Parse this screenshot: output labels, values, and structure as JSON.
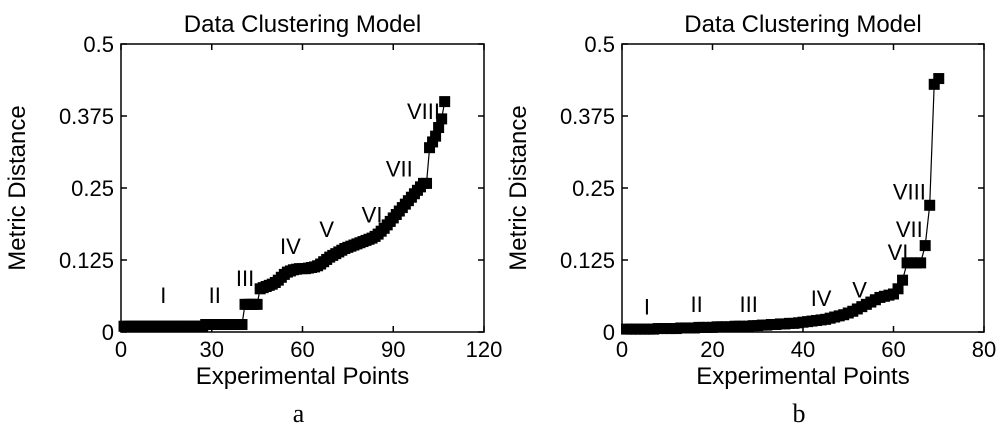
{
  "chart_data": [
    {
      "panel": "a",
      "type": "line",
      "marker": "square",
      "title": "Data Clustering Model",
      "xlabel": "Experimental Points",
      "ylabel": "Metric Distance",
      "xlim": [
        0,
        120
      ],
      "ylim": [
        0,
        0.5
      ],
      "xticks": [
        "0",
        "30",
        "60",
        "90",
        "120"
      ],
      "yticks": [
        "0",
        "0.125",
        "0.25",
        "0.375",
        "0.5"
      ],
      "grid": false,
      "annotations": [
        {
          "text": "I",
          "x": 14,
          "y": 0.05
        },
        {
          "text": "II",
          "x": 31,
          "y": 0.05
        },
        {
          "text": "III",
          "x": 41,
          "y": 0.08
        },
        {
          "text": "IV",
          "x": 56,
          "y": 0.135
        },
        {
          "text": "V",
          "x": 68,
          "y": 0.165
        },
        {
          "text": "VI",
          "x": 83,
          "y": 0.19
        },
        {
          "text": "VII",
          "x": 92,
          "y": 0.27
        },
        {
          "text": "VIII",
          "x": 100,
          "y": 0.37
        }
      ],
      "series": [
        {
          "x": [
            1,
            2,
            3,
            4,
            5,
            6,
            7,
            8,
            9,
            10,
            11,
            12,
            13,
            14,
            15,
            16,
            17,
            18,
            19,
            20,
            21,
            22,
            23,
            24,
            25,
            26,
            27,
            28,
            29,
            30,
            31,
            32,
            33,
            34,
            35,
            36,
            37,
            38,
            39,
            40,
            41,
            42,
            43,
            44,
            45,
            46,
            47,
            48,
            49,
            50,
            51,
            52,
            53,
            54,
            55,
            56,
            57,
            58,
            59,
            60,
            61,
            62,
            63,
            64,
            65,
            66,
            67,
            68,
            69,
            70,
            71,
            72,
            73,
            74,
            75,
            76,
            77,
            78,
            79,
            80,
            81,
            82,
            83,
            84,
            85,
            86,
            87,
            88,
            89,
            90,
            91,
            92,
            93,
            94,
            95,
            96,
            97,
            98,
            99,
            100,
            101,
            102,
            103,
            104,
            105,
            106,
            107
          ],
          "y": [
            0.01,
            0.01,
            0.01,
            0.01,
            0.01,
            0.01,
            0.01,
            0.01,
            0.01,
            0.01,
            0.01,
            0.01,
            0.01,
            0.01,
            0.01,
            0.01,
            0.01,
            0.01,
            0.01,
            0.01,
            0.01,
            0.01,
            0.01,
            0.01,
            0.01,
            0.01,
            0.01,
            0.013,
            0.013,
            0.013,
            0.013,
            0.013,
            0.013,
            0.013,
            0.013,
            0.013,
            0.013,
            0.013,
            0.013,
            0.013,
            0.048,
            0.048,
            0.048,
            0.048,
            0.048,
            0.075,
            0.077,
            0.079,
            0.081,
            0.083,
            0.086,
            0.09,
            0.095,
            0.1,
            0.104,
            0.106,
            0.108,
            0.109,
            0.11,
            0.11,
            0.11,
            0.111,
            0.112,
            0.113,
            0.115,
            0.118,
            0.122,
            0.126,
            0.13,
            0.133,
            0.136,
            0.139,
            0.142,
            0.145,
            0.147,
            0.149,
            0.151,
            0.153,
            0.155,
            0.157,
            0.159,
            0.161,
            0.163,
            0.166,
            0.17,
            0.175,
            0.18,
            0.186,
            0.192,
            0.198,
            0.204,
            0.21,
            0.216,
            0.222,
            0.228,
            0.234,
            0.24,
            0.246,
            0.252,
            0.258,
            0.258,
            0.32,
            0.33,
            0.34,
            0.355,
            0.37,
            0.4
          ]
        }
      ]
    },
    {
      "panel": "b",
      "type": "line",
      "marker": "square",
      "title": "Data Clustering Model",
      "xlabel": "Experimental Points",
      "ylabel": "Metric Distance",
      "xlim": [
        0,
        80
      ],
      "ylim": [
        0,
        0.5
      ],
      "xticks": [
        "0",
        "20",
        "40",
        "60",
        "80"
      ],
      "yticks": [
        "0",
        "0.125",
        "0.25",
        "0.375",
        "0.5"
      ],
      "grid": false,
      "annotations": [
        {
          "text": "I",
          "x": 5.5,
          "y": 0.03
        },
        {
          "text": "II",
          "x": 16.5,
          "y": 0.035
        },
        {
          "text": "III",
          "x": 28,
          "y": 0.035
        },
        {
          "text": "IV",
          "x": 44,
          "y": 0.045
        },
        {
          "text": "V",
          "x": 52.5,
          "y": 0.06
        },
        {
          "text": "VI",
          "x": 61,
          "y": 0.125
        },
        {
          "text": "VII",
          "x": 63.5,
          "y": 0.165
        },
        {
          "text": "VIII",
          "x": 63.5,
          "y": 0.23
        }
      ],
      "series": [
        {
          "x": [
            1,
            2,
            3,
            4,
            5,
            6,
            7,
            8,
            9,
            10,
            11,
            12,
            13,
            14,
            15,
            16,
            17,
            18,
            19,
            20,
            21,
            22,
            23,
            24,
            25,
            26,
            27,
            28,
            29,
            30,
            31,
            32,
            33,
            34,
            35,
            36,
            37,
            38,
            39,
            40,
            41,
            42,
            43,
            44,
            45,
            46,
            47,
            48,
            49,
            50,
            51,
            52,
            53,
            54,
            55,
            56,
            57,
            58,
            59,
            60,
            61,
            62,
            63,
            64,
            65,
            66,
            67,
            68,
            69,
            70
          ],
          "y": [
            0.005,
            0.005,
            0.005,
            0.005,
            0.005,
            0.005,
            0.005,
            0.006,
            0.006,
            0.006,
            0.006,
            0.006,
            0.007,
            0.007,
            0.007,
            0.007,
            0.008,
            0.008,
            0.008,
            0.008,
            0.009,
            0.009,
            0.009,
            0.009,
            0.01,
            0.01,
            0.01,
            0.01,
            0.011,
            0.011,
            0.012,
            0.012,
            0.013,
            0.013,
            0.014,
            0.014,
            0.015,
            0.015,
            0.016,
            0.017,
            0.018,
            0.019,
            0.02,
            0.021,
            0.022,
            0.024,
            0.026,
            0.028,
            0.03,
            0.033,
            0.036,
            0.04,
            0.044,
            0.048,
            0.052,
            0.056,
            0.06,
            0.062,
            0.064,
            0.066,
            0.075,
            0.09,
            0.12,
            0.12,
            0.12,
            0.12,
            0.15,
            0.22,
            0.43,
            0.44
          ]
        }
      ]
    }
  ]
}
